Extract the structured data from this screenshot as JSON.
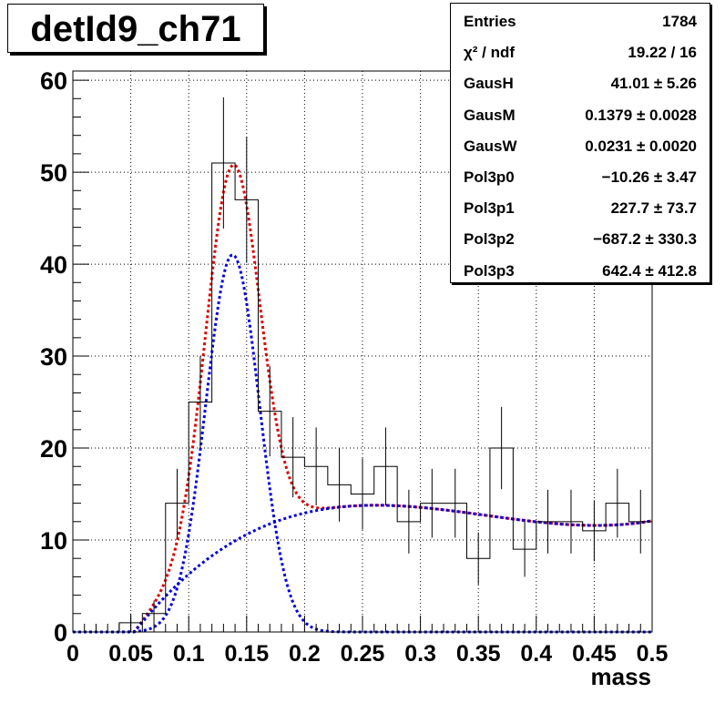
{
  "title": "detId9_ch71",
  "stats": [
    {
      "key": "Entries",
      "value": "1784"
    },
    {
      "key": "χ² / ndf",
      "value": "19.22 / 16"
    },
    {
      "key": "GausH",
      "value": "41.01 ± 5.26"
    },
    {
      "key": "GausM",
      "value": "0.1379 ± 0.0028"
    },
    {
      "key": "GausW",
      "value": "0.0231 ± 0.0020"
    },
    {
      "key": "Pol3p0",
      "value": "−10.26 ± 3.47"
    },
    {
      "key": "Pol3p1",
      "value": "227.7 ± 73.7"
    },
    {
      "key": "Pol3p2",
      "value": "−687.2 ± 330.3"
    },
    {
      "key": "Pol3p3",
      "value": "642.4 ± 412.8"
    }
  ],
  "chart_data": {
    "type": "bar",
    "title": "detId9_ch71",
    "xlabel": "mass",
    "ylabel": "",
    "xlim": [
      0,
      0.5
    ],
    "ylim": [
      0,
      61
    ],
    "grid": true,
    "bin_width": 0.02,
    "x_ticks": [
      "0",
      "0.05",
      "0.1",
      "0.15",
      "0.2",
      "0.25",
      "0.3",
      "0.35",
      "0.4",
      "0.45",
      "0.5"
    ],
    "y_ticks": [
      "0",
      "10",
      "20",
      "30",
      "40",
      "50",
      "60"
    ],
    "histogram": {
      "bin_centers": [
        0.01,
        0.03,
        0.05,
        0.07,
        0.09,
        0.11,
        0.13,
        0.15,
        0.17,
        0.19,
        0.21,
        0.23,
        0.25,
        0.27,
        0.29,
        0.31,
        0.33,
        0.35,
        0.37,
        0.39,
        0.41,
        0.43,
        0.45,
        0.47,
        0.49
      ],
      "values": [
        0,
        0,
        1,
        2,
        14,
        25,
        51,
        47,
        24,
        19,
        18,
        16,
        15,
        18,
        12,
        14,
        14,
        8,
        20,
        9,
        12,
        12,
        11,
        14,
        12
      ]
    },
    "fits": [
      {
        "name": "total",
        "color": "#dd0000",
        "style": "dashed",
        "gaus": [
          41.01,
          0.1379,
          0.0231
        ],
        "pol3": [
          -10.26,
          227.7,
          -687.2,
          642.4
        ]
      },
      {
        "name": "gaus",
        "color": "#0000dd",
        "style": "dashed",
        "gaus": [
          41.01,
          0.1379,
          0.0231
        ]
      },
      {
        "name": "pol3",
        "color": "#0000dd",
        "style": "dashed",
        "pol3": [
          -10.26,
          227.7,
          -687.2,
          642.4
        ]
      }
    ]
  }
}
